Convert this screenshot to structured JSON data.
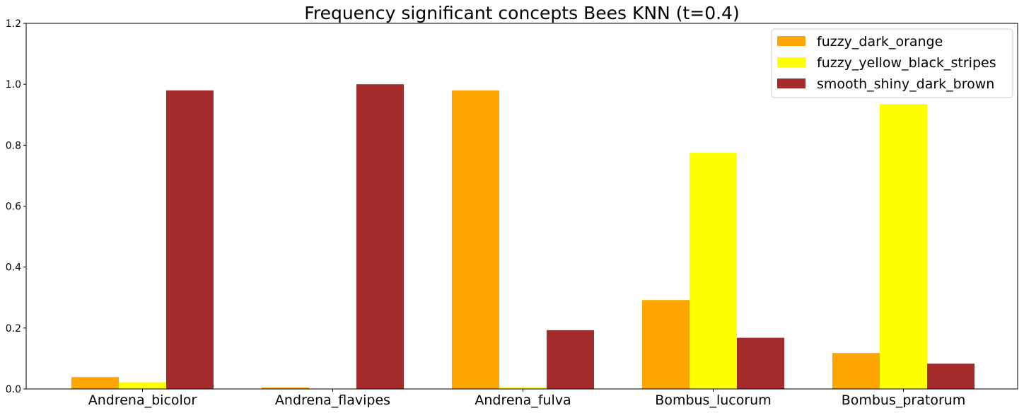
{
  "chart_data": {
    "type": "bar",
    "title": "Frequency significant concepts Bees KNN (t=0.4)",
    "xlabel": "",
    "ylabel": "",
    "categories": [
      "Andrena_bicolor",
      "Andrena_flavipes",
      "Andrena_fulva",
      "Bombus_lucorum",
      "Bombus_pratorum"
    ],
    "ylim": [
      0,
      1.2
    ],
    "yticks": [
      "0.0",
      "0.2",
      "0.4",
      "0.6",
      "0.8",
      "1.0",
      "1.2"
    ],
    "grid": false,
    "legend_position": "top-right",
    "series": [
      {
        "name": "fuzzy_dark_orange",
        "color": "#ffa500",
        "values": [
          0.039,
          0.005,
          0.98,
          0.292,
          0.118
        ]
      },
      {
        "name": "fuzzy_yellow_black_stripes",
        "color": "#ffff00",
        "values": [
          0.022,
          0.0,
          0.005,
          0.775,
          0.935
        ]
      },
      {
        "name": "smooth_shiny_dark_brown",
        "color": "#a52a2a",
        "values": [
          0.98,
          1.0,
          0.193,
          0.168,
          0.083
        ]
      }
    ]
  }
}
